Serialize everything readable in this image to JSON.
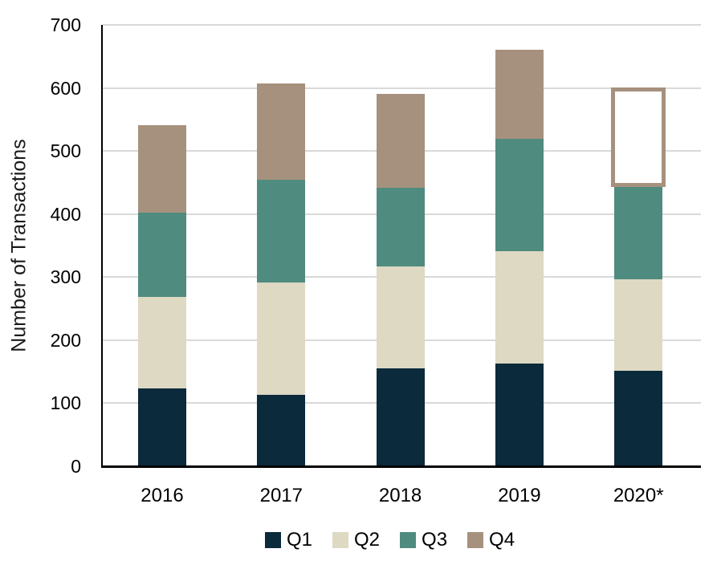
{
  "chart_data": {
    "type": "bar",
    "stacked": true,
    "title": "",
    "ylabel": "Number of Transactions",
    "xlabel": "",
    "ylim": [
      0,
      700
    ],
    "ytick_interval": 100,
    "yticks": [
      "0",
      "100",
      "200",
      "300",
      "400",
      "500",
      "600",
      "700"
    ],
    "categories": [
      "2016",
      "2017",
      "2018",
      "2019",
      "2020*"
    ],
    "series": [
      {
        "name": "Q1",
        "color": "#0b2a3b",
        "values": [
          123,
          113,
          155,
          163,
          151
        ]
      },
      {
        "name": "Q2",
        "color": "#ded9c3",
        "values": [
          146,
          178,
          162,
          178,
          145
        ]
      },
      {
        "name": "Q3",
        "color": "#4f8b7e",
        "values": [
          133,
          164,
          125,
          178,
          151
        ]
      },
      {
        "name": "Q4",
        "color": "#a6917e",
        "values": [
          139,
          152,
          148,
          142,
          150
        ]
      }
    ],
    "totals": [
      541,
      607,
      590,
      661,
      597
    ],
    "special": {
      "hollow_segment": {
        "category": "2020*",
        "series": "Q4",
        "style": "white fill with thick taupe outline (provisional/projected)"
      }
    },
    "legend_position": "bottom",
    "grid": true,
    "gridline_color": "#d9d9d9",
    "axis_color": "#000000"
  }
}
